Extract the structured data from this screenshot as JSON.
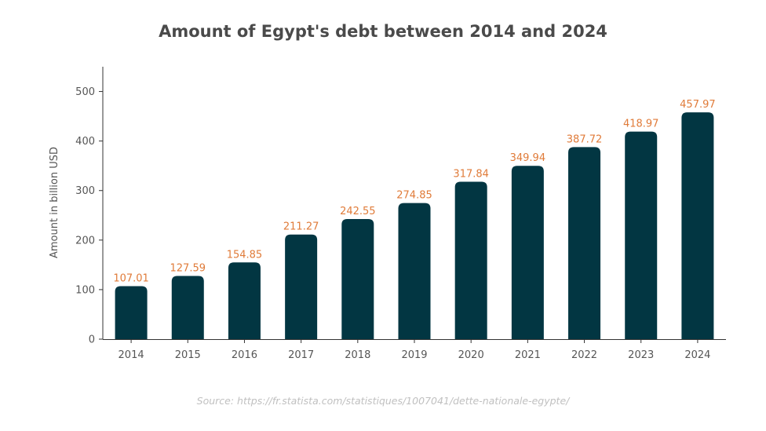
{
  "chart_data": {
    "type": "bar",
    "title": "Amount of Egypt's debt between 2014 and 2024",
    "ylabel": "Amount in billion USD",
    "xlabel": "",
    "categories": [
      "2014",
      "2015",
      "2016",
      "2017",
      "2018",
      "2019",
      "2020",
      "2021",
      "2022",
      "2023",
      "2024"
    ],
    "values": [
      107.01,
      127.59,
      154.85,
      211.27,
      242.55,
      274.85,
      317.84,
      349.94,
      387.72,
      418.97,
      457.97
    ],
    "value_labels": [
      "107.01",
      "127.59",
      "154.85",
      "211.27",
      "242.55",
      "274.85",
      "317.84",
      "349.94",
      "387.72",
      "418.97",
      "457.97"
    ],
    "ylim": [
      0,
      550
    ],
    "yticks": [
      0,
      100,
      200,
      300,
      400,
      500
    ],
    "ytick_labels": [
      "0",
      "100",
      "200",
      "300",
      "400",
      "500"
    ],
    "grid": false,
    "legend": "none",
    "bar_color": "#023642",
    "label_color": "#e07b39"
  },
  "source": "Source: https://fr.statista.com/statistiques/1007041/dette-nationale-egypte/"
}
